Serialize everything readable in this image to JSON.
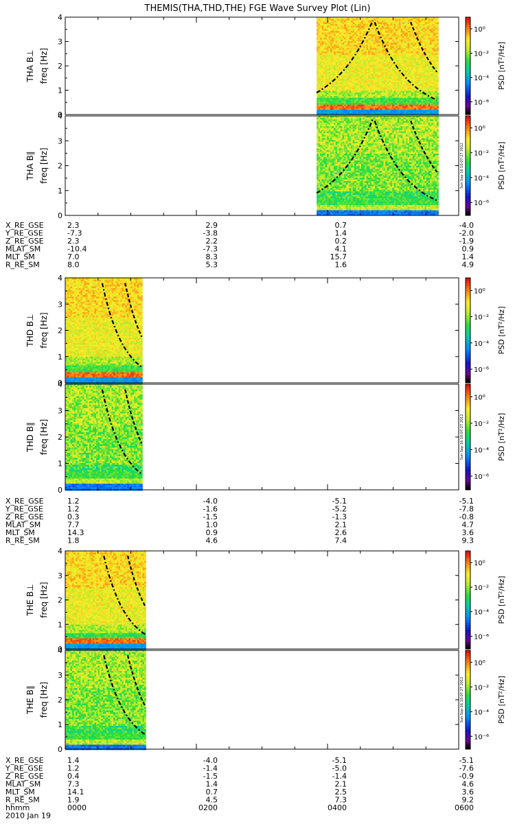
{
  "title": "THEMIS(THA,THD,THE) FGE Wave Survey Plot (Lin)",
  "date_label": "2010 Jan 19",
  "stamp": "Sun Sep 16 10:07:27 2012",
  "colors": {
    "low": "#1a4ad6",
    "mid": "#2bd06a",
    "high": "#e8e030",
    "peak": "#ff3010"
  },
  "chart_data": {
    "type": "heatmap",
    "x_tick_labels": [
      "0000",
      "0200",
      "0400",
      "0600"
    ],
    "x_row_label": "hhmm",
    "freq_ticks": [
      "0",
      "1",
      "2",
      "3",
      "4"
    ],
    "freq_range": [
      0,
      4
    ],
    "ylabel": "freq [Hz]",
    "colorbar": {
      "label": "PSD [nT²/Hz]",
      "ticks": [
        "10⁰",
        "10⁻²",
        "10⁻⁴",
        "10⁻⁶"
      ],
      "scale": "log"
    },
    "probes": [
      {
        "id": "THA",
        "panels": [
          "THA B⊥",
          "THA B∥"
        ],
        "data_time_range_hhmm": [
          "0350",
          "0540"
        ],
        "orbit_rows": [
          {
            "label": "X_RE_GSE",
            "values": [
              "2.3",
              "2.9",
              "0.7",
              "-4.0"
            ]
          },
          {
            "label": "Y_RE_GSE",
            "values": [
              "-7.3",
              "-3.8",
              "1.4",
              "-2.0"
            ]
          },
          {
            "label": "Z_RE_GSE",
            "values": [
              "2.3",
              "2.2",
              "0.2",
              "-1.9"
            ]
          },
          {
            "label": "MLAT_SM",
            "values": [
              "-10.4",
              "-7.3",
              "4.1",
              "0.9"
            ]
          },
          {
            "label": "MLT_SM",
            "values": [
              "7.0",
              "8.3",
              "15.7",
              "1.4"
            ]
          },
          {
            "label": "R_RE_SM",
            "values": [
              "8.0",
              "5.3",
              "1.6",
              "4.9"
            ]
          }
        ]
      },
      {
        "id": "THD",
        "panels": [
          "THD B⊥",
          "THD B∥"
        ],
        "data_time_range_hhmm": [
          "0000",
          "0110"
        ],
        "orbit_rows": [
          {
            "label": "X_RE_GSE",
            "values": [
              "1.2",
              "-4.0",
              "-5.1",
              "-5.1"
            ]
          },
          {
            "label": "Y_RE_GSE",
            "values": [
              "1.2",
              "-1.6",
              "-5.2",
              "-7.8"
            ]
          },
          {
            "label": "Z_RE_GSE",
            "values": [
              "0.3",
              "-1.5",
              "-1.3",
              "-0.8"
            ]
          },
          {
            "label": "MLAT_SM",
            "values": [
              "7.7",
              "1.0",
              "2.1",
              "4.7"
            ]
          },
          {
            "label": "MLT_SM",
            "values": [
              "14.3",
              "0.9",
              "2.6",
              "3.6"
            ]
          },
          {
            "label": "R_RE_SM",
            "values": [
              "1.8",
              "4.6",
              "7.4",
              "9.3"
            ]
          }
        ]
      },
      {
        "id": "THE",
        "panels": [
          "THE B⊥",
          "THE B∥"
        ],
        "data_time_range_hhmm": [
          "0000",
          "0113"
        ],
        "orbit_rows": [
          {
            "label": "X_RE_GSE",
            "values": [
              "1.4",
              "-4.0",
              "-5.1",
              "-5.1"
            ]
          },
          {
            "label": "Y_RE_GSE",
            "values": [
              "1.2",
              "-1.4",
              "-5.0",
              "-7.6"
            ]
          },
          {
            "label": "Z_RE_GSE",
            "values": [
              "0.4",
              "-1.5",
              "-1.4",
              "-0.9"
            ]
          },
          {
            "label": "MLAT_SM",
            "values": [
              "7.3",
              "1.4",
              "2.1",
              "4.6"
            ]
          },
          {
            "label": "MLT_SM",
            "values": [
              "14.1",
              "0.7",
              "2.5",
              "3.6"
            ]
          },
          {
            "label": "R_RE_SM",
            "values": [
              "1.9",
              "4.5",
              "7.3",
              "9.2"
            ]
          }
        ]
      }
    ]
  }
}
